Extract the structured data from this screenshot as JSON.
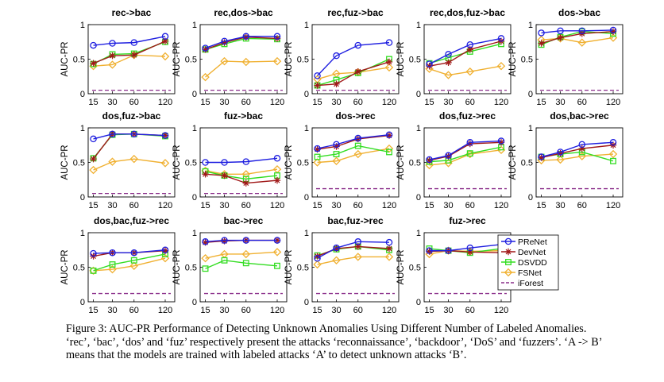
{
  "series_styles": [
    {
      "name": "PReNet",
      "color": "#1f1fe0",
      "marker": "circle",
      "dash": false
    },
    {
      "name": "DevNet",
      "color": "#a01818",
      "marker": "star",
      "dash": false
    },
    {
      "name": "DSVDD",
      "color": "#33dd22",
      "marker": "square",
      "dash": false
    },
    {
      "name": "FSNet",
      "color": "#f0b030",
      "marker": "diamond",
      "dash": false
    },
    {
      "name": "iForest",
      "color": "#8a2e8a",
      "marker": "none",
      "dash": true
    }
  ],
  "chart_data": [
    {
      "type": "line",
      "title": "rec->bac",
      "x": [
        15,
        30,
        60,
        120
      ],
      "ylabel": "AUC-PR",
      "ylim": [
        0,
        1
      ],
      "series": [
        {
          "name": "PReNet",
          "values": [
            0.7,
            0.73,
            0.74,
            0.83
          ]
        },
        {
          "name": "DevNet",
          "values": [
            0.44,
            0.55,
            0.56,
            0.76
          ]
        },
        {
          "name": "DSVDD",
          "values": [
            0.43,
            0.57,
            0.58,
            0.75
          ]
        },
        {
          "name": "FSNet",
          "values": [
            0.4,
            0.42,
            0.56,
            0.54
          ]
        },
        {
          "name": "iForest",
          "values": [
            0.05,
            0.05,
            0.05,
            0.05
          ]
        }
      ]
    },
    {
      "type": "line",
      "title": "rec,dos->bac",
      "x": [
        15,
        30,
        60,
        120
      ],
      "ylabel": "AUC-PR",
      "ylim": [
        0,
        1
      ],
      "series": [
        {
          "name": "PReNet",
          "values": [
            0.66,
            0.76,
            0.83,
            0.83
          ]
        },
        {
          "name": "DevNet",
          "values": [
            0.64,
            0.74,
            0.82,
            0.8
          ]
        },
        {
          "name": "DSVDD",
          "values": [
            0.64,
            0.72,
            0.8,
            0.79
          ]
        },
        {
          "name": "FSNet",
          "values": [
            0.24,
            0.47,
            0.46,
            0.47
          ]
        },
        {
          "name": "iForest",
          "values": [
            0.05,
            0.05,
            0.05,
            0.05
          ]
        }
      ]
    },
    {
      "type": "line",
      "title": "rec,fuz->bac",
      "x": [
        15,
        30,
        60,
        120
      ],
      "ylabel": "AUC-PR",
      "ylim": [
        0,
        1
      ],
      "series": [
        {
          "name": "PReNet",
          "values": [
            0.26,
            0.55,
            0.7,
            0.74
          ]
        },
        {
          "name": "DevNet",
          "values": [
            0.12,
            0.14,
            0.32,
            0.46
          ]
        },
        {
          "name": "DSVDD",
          "values": [
            0.12,
            0.2,
            0.3,
            0.5
          ]
        },
        {
          "name": "FSNet",
          "values": [
            0.21,
            0.29,
            0.31,
            0.38
          ]
        },
        {
          "name": "iForest",
          "values": [
            0.05,
            0.05,
            0.05,
            0.05
          ]
        }
      ]
    },
    {
      "type": "line",
      "title": "rec,dos,fuz->bac",
      "x": [
        15,
        30,
        60,
        120
      ],
      "ylabel": "AUC-PR",
      "ylim": [
        0,
        1
      ],
      "series": [
        {
          "name": "PReNet",
          "values": [
            0.43,
            0.57,
            0.71,
            0.8
          ]
        },
        {
          "name": "DevNet",
          "values": [
            0.4,
            0.45,
            0.64,
            0.76
          ]
        },
        {
          "name": "DSVDD",
          "values": [
            0.44,
            0.52,
            0.61,
            0.72
          ]
        },
        {
          "name": "FSNet",
          "values": [
            0.36,
            0.27,
            0.32,
            0.4
          ]
        },
        {
          "name": "iForest",
          "values": [
            0.05,
            0.05,
            0.05,
            0.05
          ]
        }
      ]
    },
    {
      "type": "line",
      "title": "dos->bac",
      "x": [
        15,
        30,
        60,
        120
      ],
      "ylabel": "AUC-PR",
      "ylim": [
        0,
        1
      ],
      "series": [
        {
          "name": "PReNet",
          "values": [
            0.88,
            0.91,
            0.91,
            0.92
          ]
        },
        {
          "name": "DevNet",
          "values": [
            0.73,
            0.81,
            0.87,
            0.9
          ]
        },
        {
          "name": "DSVDD",
          "values": [
            0.71,
            0.82,
            0.9,
            0.87
          ]
        },
        {
          "name": "FSNet",
          "values": [
            0.78,
            0.8,
            0.74,
            0.81
          ]
        },
        {
          "name": "iForest",
          "values": [
            0.05,
            0.05,
            0.05,
            0.05
          ]
        }
      ]
    },
    {
      "type": "line",
      "title": "dos,fuz->bac",
      "x": [
        15,
        30,
        60,
        120
      ],
      "ylabel": "AUC-PR",
      "ylim": [
        0,
        1
      ],
      "series": [
        {
          "name": "PReNet",
          "values": [
            0.84,
            0.91,
            0.91,
            0.89
          ]
        },
        {
          "name": "DevNet",
          "values": [
            0.55,
            0.91,
            0.91,
            0.89
          ]
        },
        {
          "name": "DSVDD",
          "values": [
            0.56,
            0.9,
            0.91,
            0.88
          ]
        },
        {
          "name": "FSNet",
          "values": [
            0.39,
            0.51,
            0.55,
            0.49
          ]
        },
        {
          "name": "iForest",
          "values": [
            0.05,
            0.05,
            0.05,
            0.05
          ]
        }
      ]
    },
    {
      "type": "line",
      "title": "fuz->bac",
      "x": [
        15,
        30,
        60,
        120
      ],
      "ylabel": "AUC-PR",
      "ylim": [
        0,
        1
      ],
      "series": [
        {
          "name": "PReNet",
          "values": [
            0.5,
            0.5,
            0.51,
            0.56
          ]
        },
        {
          "name": "DevNet",
          "values": [
            0.33,
            0.31,
            0.2,
            0.24
          ]
        },
        {
          "name": "DSVDD",
          "values": [
            0.37,
            0.31,
            0.26,
            0.31
          ]
        },
        {
          "name": "FSNet",
          "values": [
            0.38,
            0.33,
            0.33,
            0.4
          ]
        },
        {
          "name": "iForest",
          "values": [
            0.05,
            0.05,
            0.05,
            0.05
          ]
        }
      ]
    },
    {
      "type": "line",
      "title": "dos->rec",
      "x": [
        15,
        30,
        60,
        120
      ],
      "ylabel": "AUC-PR",
      "ylim": [
        0,
        1
      ],
      "series": [
        {
          "name": "PReNet",
          "values": [
            0.7,
            0.76,
            0.85,
            0.9
          ]
        },
        {
          "name": "DevNet",
          "values": [
            0.69,
            0.73,
            0.84,
            0.89
          ]
        },
        {
          "name": "DSVDD",
          "values": [
            0.58,
            0.62,
            0.74,
            0.65
          ]
        },
        {
          "name": "FSNet",
          "values": [
            0.5,
            0.52,
            0.62,
            0.7
          ]
        },
        {
          "name": "iForest",
          "values": [
            0.12,
            0.12,
            0.12,
            0.12
          ]
        }
      ]
    },
    {
      "type": "line",
      "title": "dos,fuz->rec",
      "x": [
        15,
        30,
        60,
        120
      ],
      "ylabel": "AUC-PR",
      "ylim": [
        0,
        1
      ],
      "series": [
        {
          "name": "PReNet",
          "values": [
            0.54,
            0.6,
            0.79,
            0.81
          ]
        },
        {
          "name": "DevNet",
          "values": [
            0.53,
            0.59,
            0.77,
            0.79
          ]
        },
        {
          "name": "DSVDD",
          "values": [
            0.51,
            0.53,
            0.63,
            0.72
          ]
        },
        {
          "name": "FSNet",
          "values": [
            0.46,
            0.49,
            0.62,
            0.68
          ]
        },
        {
          "name": "iForest",
          "values": [
            0.12,
            0.12,
            0.12,
            0.12
          ]
        }
      ]
    },
    {
      "type": "line",
      "title": "dos,bac->rec",
      "x": [
        15,
        30,
        60,
        120
      ],
      "ylabel": "AUC-PR",
      "ylim": [
        0,
        1
      ],
      "series": [
        {
          "name": "PReNet",
          "values": [
            0.58,
            0.65,
            0.76,
            0.79
          ]
        },
        {
          "name": "DevNet",
          "values": [
            0.57,
            0.63,
            0.7,
            0.75
          ]
        },
        {
          "name": "DSVDD",
          "values": [
            0.58,
            0.62,
            0.65,
            0.52
          ]
        },
        {
          "name": "FSNet",
          "values": [
            0.53,
            0.54,
            0.59,
            0.62
          ]
        },
        {
          "name": "iForest",
          "values": [
            0.12,
            0.12,
            0.12,
            0.12
          ]
        }
      ]
    },
    {
      "type": "line",
      "title": "dos,bac,fuz->rec",
      "x": [
        15,
        30,
        60,
        120
      ],
      "ylabel": "AUC-PR",
      "ylim": [
        0,
        1
      ],
      "series": [
        {
          "name": "PReNet",
          "values": [
            0.7,
            0.71,
            0.71,
            0.75
          ]
        },
        {
          "name": "DevNet",
          "values": [
            0.66,
            0.71,
            0.71,
            0.74
          ]
        },
        {
          "name": "DSVDD",
          "values": [
            0.45,
            0.54,
            0.6,
            0.69
          ]
        },
        {
          "name": "FSNet",
          "values": [
            0.45,
            0.47,
            0.52,
            0.63
          ]
        },
        {
          "name": "iForest",
          "values": [
            0.12,
            0.12,
            0.12,
            0.12
          ]
        }
      ]
    },
    {
      "type": "line",
      "title": "bac->rec",
      "x": [
        15,
        30,
        60,
        120
      ],
      "ylabel": "AUC-PR",
      "ylim": [
        0,
        1
      ],
      "series": [
        {
          "name": "PReNet",
          "values": [
            0.87,
            0.89,
            0.89,
            0.89
          ]
        },
        {
          "name": "DevNet",
          "values": [
            0.86,
            0.88,
            0.89,
            0.89
          ]
        },
        {
          "name": "DSVDD",
          "values": [
            0.48,
            0.6,
            0.56,
            0.52
          ]
        },
        {
          "name": "FSNet",
          "values": [
            0.63,
            0.69,
            0.69,
            0.72
          ]
        },
        {
          "name": "iForest",
          "values": [
            0.12,
            0.12,
            0.12,
            0.12
          ]
        }
      ]
    },
    {
      "type": "line",
      "title": "bac,fuz->rec",
      "x": [
        15,
        30,
        60,
        120
      ],
      "ylabel": "AUC-PR",
      "ylim": [
        0,
        1
      ],
      "series": [
        {
          "name": "PReNet",
          "values": [
            0.63,
            0.78,
            0.87,
            0.86
          ]
        },
        {
          "name": "DevNet",
          "values": [
            0.66,
            0.77,
            0.8,
            0.77
          ]
        },
        {
          "name": "DSVDD",
          "values": [
            0.67,
            0.76,
            0.8,
            0.75
          ]
        },
        {
          "name": "FSNet",
          "values": [
            0.54,
            0.6,
            0.65,
            0.65
          ]
        },
        {
          "name": "iForest",
          "values": [
            0.12,
            0.12,
            0.12,
            0.12
          ]
        }
      ]
    },
    {
      "type": "line",
      "title": "fuz->rec",
      "x": [
        15,
        30,
        60,
        120
      ],
      "ylabel": "AUC-PR",
      "ylim": [
        0,
        1
      ],
      "series": [
        {
          "name": "PReNet",
          "values": [
            0.74,
            0.74,
            0.78,
            0.83
          ]
        },
        {
          "name": "DevNet",
          "values": [
            0.73,
            0.74,
            0.72,
            0.71
          ]
        },
        {
          "name": "DSVDD",
          "values": [
            0.77,
            0.74,
            0.71,
            0.77
          ]
        },
        {
          "name": "FSNet",
          "values": [
            0.69,
            0.74,
            0.73,
            0.74
          ]
        },
        {
          "name": "iForest",
          "values": [
            0.12,
            0.12,
            0.12,
            0.12
          ]
        }
      ]
    }
  ],
  "axis": {
    "ytick_labels": [
      "0",
      "0.5",
      "1"
    ],
    "xtick_labels": [
      "15",
      "30",
      "60",
      "120"
    ],
    "ylabel": "AUC-PR"
  },
  "legend": {
    "entries": [
      "PReNet",
      "DevNet",
      "DSVDD",
      "FSNet",
      "iForest"
    ],
    "placement": "right of last row"
  },
  "caption": {
    "line1": "Figure 3: AUC-PR Performance of Detecting Unknown Anomalies Using Different Number of Labeled Anomalies.",
    "line2": "‘rec’, ‘bac’, ‘dos’ and ‘fuz’ respectively present the attacks ‘reconnaissance’, ‘backdoor’, ‘DoS’ and ‘fuzzers’. ‘A -> B’",
    "line3": "means that the models are trained with labeled attacks ‘A’ to detect unknown attacks ‘B’."
  }
}
